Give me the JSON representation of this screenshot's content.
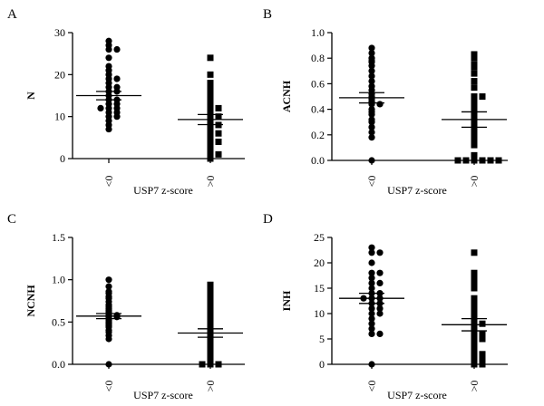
{
  "chart_data": [
    {
      "type": "scatter",
      "panel_label": "A",
      "ylabel": "N",
      "xlabel": "USP7 z-score",
      "ylim": [
        0,
        30
      ],
      "yticks": [
        "0",
        "10",
        "20",
        "30"
      ],
      "ytick_values": [
        0,
        10,
        20,
        30
      ],
      "categories": [
        "<0",
        ">0"
      ],
      "series": [
        {
          "name": "<0",
          "marker": "circle",
          "mean": 15,
          "sem": 1.0,
          "values": [
            28,
            27,
            26,
            26,
            24,
            22,
            21,
            20,
            19,
            19,
            18,
            17,
            17,
            16,
            16,
            15,
            14,
            14,
            13,
            13,
            12,
            12,
            12,
            11,
            11,
            10,
            10,
            9,
            8,
            7
          ]
        },
        {
          "name": ">0",
          "marker": "square",
          "mean": 9.3,
          "sem": 1.2,
          "values": [
            24,
            20,
            18,
            17,
            16,
            15,
            14,
            13,
            12,
            12,
            11,
            10,
            10,
            9,
            8,
            8,
            7,
            6,
            6,
            5,
            4,
            4,
            3,
            2,
            1,
            1,
            0
          ]
        }
      ]
    },
    {
      "type": "scatter",
      "panel_label": "B",
      "ylabel": "ACNH",
      "xlabel": "USP7 z-score",
      "ylim": [
        0,
        1.0
      ],
      "yticks": [
        "0.0",
        "0.2",
        "0.4",
        "0.6",
        "0.8",
        "1.0"
      ],
      "ytick_values": [
        0,
        0.2,
        0.4,
        0.6,
        0.8,
        1.0
      ],
      "categories": [
        "<0",
        ">0"
      ],
      "series": [
        {
          "name": "<0",
          "marker": "circle",
          "mean": 0.49,
          "sem": 0.04,
          "values": [
            0.88,
            0.84,
            0.8,
            0.78,
            0.77,
            0.74,
            0.7,
            0.66,
            0.62,
            0.58,
            0.55,
            0.52,
            0.5,
            0.48,
            0.46,
            0.44,
            0.44,
            0.4,
            0.38,
            0.36,
            0.32,
            0.3,
            0.26,
            0.22,
            0.18,
            0.0
          ]
        },
        {
          "name": ">0",
          "marker": "square",
          "mean": 0.32,
          "sem": 0.06,
          "values": [
            0.83,
            0.8,
            0.75,
            0.73,
            0.68,
            0.62,
            0.57,
            0.5,
            0.5,
            0.46,
            0.44,
            0.4,
            0.36,
            0.34,
            0.3,
            0.26,
            0.24,
            0.2,
            0.16,
            0.12,
            0.04,
            0.0,
            0.0,
            0.0,
            0.0,
            0.0,
            0.0
          ]
        }
      ]
    },
    {
      "type": "scatter",
      "panel_label": "C",
      "ylabel": "NCNH",
      "xlabel": "USP7 z-score",
      "ylim": [
        0,
        1.5
      ],
      "yticks": [
        "0.0",
        "0.5",
        "1.0",
        "1.5"
      ],
      "ytick_values": [
        0,
        0.5,
        1.0,
        1.5
      ],
      "categories": [
        "<0",
        ">0"
      ],
      "series": [
        {
          "name": "<0",
          "marker": "circle",
          "mean": 0.57,
          "sem": 0.03,
          "values": [
            1.0,
            0.92,
            0.86,
            0.84,
            0.8,
            0.78,
            0.74,
            0.7,
            0.68,
            0.66,
            0.64,
            0.62,
            0.6,
            0.58,
            0.58,
            0.56,
            0.56,
            0.54,
            0.52,
            0.5,
            0.48,
            0.46,
            0.44,
            0.4,
            0.38,
            0.34,
            0.3,
            0.0
          ]
        },
        {
          "name": ">0",
          "marker": "square",
          "mean": 0.37,
          "sem": 0.05,
          "values": [
            0.94,
            0.88,
            0.84,
            0.8,
            0.74,
            0.7,
            0.66,
            0.6,
            0.56,
            0.5,
            0.48,
            0.44,
            0.4,
            0.36,
            0.32,
            0.28,
            0.26,
            0.22,
            0.2,
            0.16,
            0.12,
            0.1,
            0.06,
            0.03,
            0.0,
            0.0,
            0.0
          ]
        }
      ]
    },
    {
      "type": "scatter",
      "panel_label": "D",
      "ylabel": "INH",
      "xlabel": "USP7 z-score",
      "ylim": [
        0,
        25
      ],
      "yticks": [
        "0",
        "5",
        "10",
        "15",
        "20",
        "25"
      ],
      "ytick_values": [
        0,
        5,
        10,
        15,
        20,
        25
      ],
      "categories": [
        "<0",
        ">0"
      ],
      "series": [
        {
          "name": "<0",
          "marker": "circle",
          "mean": 13,
          "sem": 1.0,
          "values": [
            23,
            22,
            22,
            20,
            18,
            18,
            17,
            16,
            16,
            15,
            14,
            14,
            13,
            13,
            13,
            12,
            12,
            11,
            11,
            10,
            10,
            9,
            8,
            7,
            6,
            6,
            0
          ]
        },
        {
          "name": ">0",
          "marker": "square",
          "mean": 7.8,
          "sem": 1.2,
          "values": [
            22,
            18,
            17,
            16,
            15,
            13,
            12,
            11,
            10,
            9,
            8,
            8,
            7,
            6,
            6,
            5,
            5,
            4,
            3,
            2,
            2,
            1,
            1,
            0,
            0
          ]
        }
      ]
    }
  ]
}
